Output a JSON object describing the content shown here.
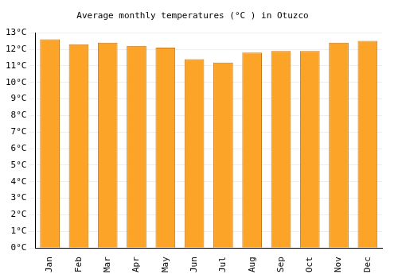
{
  "chart_data": {
    "type": "bar",
    "title": "Average monthly temperatures (°C ) in Otuzco",
    "categories": [
      "Jan",
      "Feb",
      "Mar",
      "Apr",
      "May",
      "Jun",
      "Jul",
      "Aug",
      "Sep",
      "Oct",
      "Nov",
      "Dec"
    ],
    "values": [
      12.6,
      12.3,
      12.4,
      12.2,
      12.1,
      11.4,
      11.2,
      11.8,
      11.9,
      11.9,
      12.4,
      12.5
    ],
    "color": "#fca428",
    "ylim": [
      0,
      13
    ],
    "yticks": [
      {
        "value": 0,
        "label": "0°C"
      },
      {
        "value": 1,
        "label": "1°C"
      },
      {
        "value": 2,
        "label": "2°C"
      },
      {
        "value": 3,
        "label": "3°C"
      },
      {
        "value": 4,
        "label": "4°C"
      },
      {
        "value": 5,
        "label": "5°C"
      },
      {
        "value": 6,
        "label": "6°C"
      },
      {
        "value": 7,
        "label": "7°C"
      },
      {
        "value": 8,
        "label": "8°C"
      },
      {
        "value": 9,
        "label": "9°C"
      },
      {
        "value": 10,
        "label": "10°C"
      },
      {
        "value": 11,
        "label": "11°C"
      },
      {
        "value": 12,
        "label": "12°C"
      },
      {
        "value": 13,
        "label": "13°C"
      }
    ],
    "grid": true
  }
}
